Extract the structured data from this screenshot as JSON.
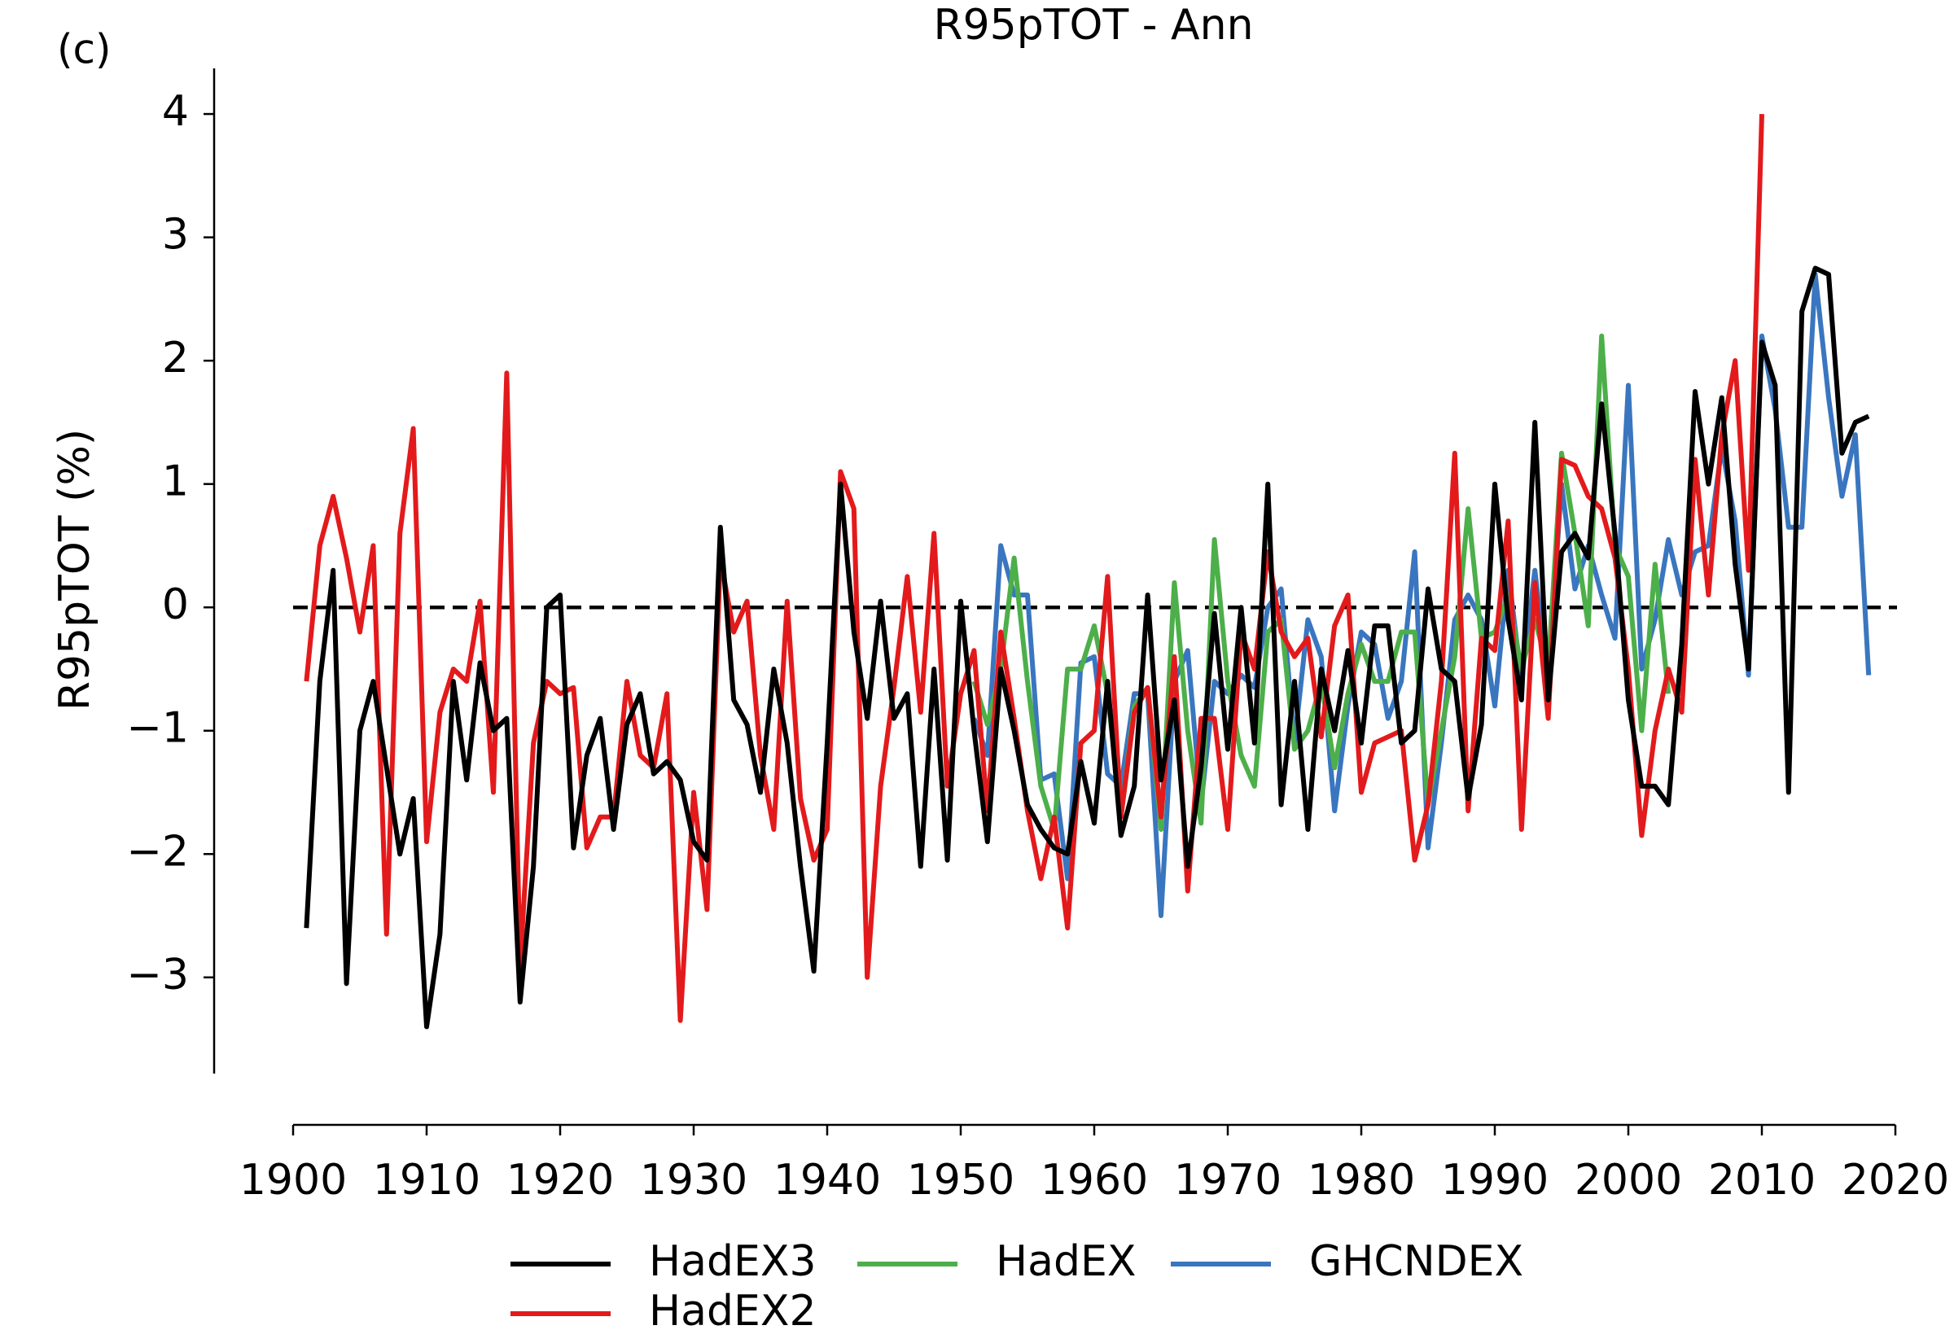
{
  "chart_data": {
    "type": "line",
    "title": "R95pTOT - Ann",
    "ylabel": "R95pTOT (%)",
    "annotation": "(c)",
    "x": [
      1901,
      1902,
      1903,
      1904,
      1905,
      1906,
      1907,
      1908,
      1909,
      1910,
      1911,
      1912,
      1913,
      1914,
      1915,
      1916,
      1917,
      1918,
      1919,
      1920,
      1921,
      1922,
      1923,
      1924,
      1925,
      1926,
      1927,
      1928,
      1929,
      1930,
      1931,
      1932,
      1933,
      1934,
      1935,
      1936,
      1937,
      1938,
      1939,
      1940,
      1941,
      1942,
      1943,
      1944,
      1945,
      1946,
      1947,
      1948,
      1949,
      1950,
      1951,
      1952,
      1953,
      1954,
      1955,
      1956,
      1957,
      1958,
      1959,
      1960,
      1961,
      1962,
      1963,
      1964,
      1965,
      1966,
      1967,
      1968,
      1969,
      1970,
      1971,
      1972,
      1973,
      1974,
      1975,
      1976,
      1977,
      1978,
      1979,
      1980,
      1981,
      1982,
      1983,
      1984,
      1985,
      1986,
      1987,
      1988,
      1989,
      1990,
      1991,
      1992,
      1993,
      1994,
      1995,
      1996,
      1997,
      1998,
      1999,
      2000,
      2001,
      2002,
      2003,
      2004,
      2005,
      2006,
      2007,
      2008,
      2009,
      2010,
      2011,
      2012,
      2013,
      2014,
      2015,
      2016,
      2017,
      2018
    ],
    "series": [
      {
        "name": "HadEX3",
        "color": "#000000",
        "values": [
          -2.6,
          -0.6,
          0.3,
          -3.05,
          -1.0,
          -0.6,
          -1.3,
          -2.0,
          -1.55,
          -3.4,
          -2.65,
          -0.6,
          -1.4,
          -0.45,
          -1.0,
          -0.9,
          -3.2,
          -2.1,
          0.0,
          0.1,
          -1.95,
          -1.2,
          -0.9,
          -1.8,
          -0.95,
          -0.7,
          -1.35,
          -1.25,
          -1.4,
          -1.9,
          -2.05,
          0.65,
          -0.75,
          -0.95,
          -1.5,
          -0.5,
          -1.1,
          -2.1,
          -2.95,
          -1.1,
          1.0,
          -0.2,
          -0.9,
          0.05,
          -0.9,
          -0.7,
          -2.1,
          -0.5,
          -2.05,
          0.05,
          -1.0,
          -1.9,
          -0.5,
          -1.0,
          -1.6,
          -1.8,
          -1.95,
          -2.0,
          -1.25,
          -1.75,
          -0.6,
          -1.85,
          -1.45,
          0.1,
          -1.4,
          -0.75,
          -2.1,
          -1.3,
          -0.05,
          -1.15,
          0.0,
          -1.1,
          1.0,
          -1.6,
          -0.6,
          -1.8,
          -0.5,
          -1.0,
          -0.35,
          -1.1,
          -0.15,
          -0.15,
          -1.1,
          -1.0,
          0.15,
          -0.5,
          -0.6,
          -1.55,
          -0.95,
          1.0,
          -0.1,
          -0.75,
          1.5,
          -0.75,
          0.45,
          0.6,
          0.4,
          1.65,
          0.6,
          -0.75,
          -1.45,
          -1.45,
          -1.6,
          -0.3,
          1.75,
          1.0,
          1.7,
          0.35,
          -0.5,
          2.15,
          1.8,
          -1.5,
          2.4,
          2.75,
          2.7,
          1.25,
          1.5,
          1.55
        ]
      },
      {
        "name": "HadEX2",
        "color": "#e31a1c",
        "values": [
          -0.6,
          0.5,
          0.9,
          0.4,
          -0.2,
          0.5,
          -2.65,
          0.6,
          1.45,
          -1.9,
          -0.85,
          -0.5,
          -0.6,
          0.05,
          -1.5,
          1.9,
          -2.9,
          -1.1,
          -0.6,
          -0.7,
          -0.65,
          -1.95,
          -1.7,
          -1.7,
          -0.6,
          -1.2,
          -1.3,
          -0.7,
          -3.35,
          -1.5,
          -2.45,
          0.4,
          -0.2,
          0.05,
          -1.2,
          -1.8,
          0.05,
          -1.55,
          -2.05,
          -1.8,
          1.1,
          0.8,
          -3.0,
          -1.45,
          -0.65,
          0.25,
          -0.85,
          0.6,
          -1.45,
          -0.7,
          -0.35,
          -1.65,
          -0.2,
          -0.9,
          -1.65,
          -2.2,
          -1.7,
          -2.6,
          -1.1,
          -1.0,
          0.25,
          -1.7,
          -0.85,
          -0.65,
          -1.7,
          -0.4,
          -2.3,
          -0.9,
          -0.9,
          -1.8,
          -0.2,
          -0.5,
          0.45,
          -0.2,
          -0.4,
          -0.25,
          -1.05,
          -0.15,
          0.1,
          -1.5,
          -1.1,
          -1.05,
          -1.0,
          -2.05,
          -1.6,
          -0.6,
          1.25,
          -1.65,
          -0.25,
          -0.35,
          0.7,
          -1.8,
          0.2,
          -0.9,
          1.2,
          1.15,
          0.9,
          0.8,
          0.4,
          -0.5,
          -1.85,
          -1.0,
          -0.5,
          -0.85,
          1.2,
          0.1,
          1.4,
          2.0,
          0.3,
          4.0,
          null,
          null,
          null,
          null,
          null,
          null,
          null,
          null
        ]
      },
      {
        "name": "HadEX",
        "color": "#4daf4a",
        "values": [
          null,
          null,
          null,
          null,
          null,
          null,
          null,
          null,
          null,
          null,
          null,
          null,
          null,
          null,
          null,
          null,
          null,
          null,
          null,
          null,
          null,
          null,
          null,
          null,
          null,
          null,
          null,
          null,
          null,
          null,
          null,
          null,
          null,
          null,
          null,
          null,
          null,
          null,
          null,
          null,
          null,
          null,
          null,
          null,
          null,
          null,
          null,
          null,
          null,
          null,
          -0.6,
          -0.95,
          -0.5,
          0.4,
          -0.6,
          -1.45,
          -1.8,
          -0.5,
          -0.5,
          -0.15,
          -0.7,
          -1.7,
          -0.8,
          -0.65,
          -1.8,
          0.2,
          -1.0,
          -1.75,
          0.55,
          -0.6,
          -1.2,
          -1.45,
          -0.2,
          -0.1,
          -1.15,
          -1.0,
          -0.6,
          -1.3,
          -0.7,
          -0.3,
          -0.6,
          -0.6,
          -0.2,
          -0.2,
          -1.6,
          -1.0,
          -0.4,
          0.8,
          -0.25,
          -0.2,
          0.1,
          -0.5,
          -0.1,
          -0.5,
          1.25,
          0.6,
          -0.15,
          2.2,
          0.5,
          0.25,
          -1.0,
          0.35,
          -0.7,
          null,
          null,
          null,
          null,
          null,
          null,
          null,
          null,
          null,
          null,
          null,
          null,
          null,
          null,
          null
        ]
      },
      {
        "name": "GHCNDEX",
        "color": "#3a76bf",
        "values": [
          null,
          null,
          null,
          null,
          null,
          null,
          null,
          null,
          null,
          null,
          null,
          null,
          null,
          null,
          null,
          null,
          null,
          null,
          null,
          null,
          null,
          null,
          null,
          null,
          null,
          null,
          null,
          null,
          null,
          null,
          null,
          null,
          null,
          null,
          null,
          null,
          null,
          null,
          null,
          null,
          null,
          null,
          null,
          null,
          null,
          null,
          null,
          null,
          null,
          null,
          -0.9,
          -1.2,
          0.5,
          0.1,
          0.1,
          -1.4,
          -1.35,
          -2.2,
          -0.45,
          -0.4,
          -1.35,
          -1.45,
          -0.7,
          -0.7,
          -2.5,
          -0.6,
          -0.35,
          -1.6,
          -0.6,
          -0.7,
          -0.55,
          -0.65,
          0.0,
          0.15,
          -1.1,
          -0.1,
          -0.4,
          -1.65,
          -0.8,
          -0.2,
          -0.3,
          -0.9,
          -0.6,
          0.45,
          -1.95,
          -1.1,
          -0.1,
          0.1,
          -0.1,
          -0.8,
          0.3,
          -0.6,
          0.3,
          -0.6,
          1.0,
          0.15,
          0.5,
          0.1,
          -0.25,
          1.8,
          -0.5,
          -0.1,
          0.55,
          0.1,
          0.45,
          0.5,
          1.3,
          0.7,
          -0.55,
          2.2,
          1.6,
          0.65,
          0.65,
          2.7,
          1.7,
          0.9,
          1.4,
          -0.55
        ]
      }
    ],
    "xlim": [
      1900,
      2020
    ],
    "xticks": [
      1900,
      1910,
      1920,
      1930,
      1940,
      1950,
      1960,
      1970,
      1980,
      1990,
      2000,
      2010,
      2020
    ],
    "ylim": [
      -3.78,
      4.37
    ],
    "yticks": [
      {
        "value": -3,
        "label": "−3"
      },
      {
        "value": -2,
        "label": "−2"
      },
      {
        "value": -1,
        "label": "−1"
      },
      0,
      1,
      2,
      3,
      4
    ],
    "reference_line": 0,
    "grid": false,
    "legend": "lower center"
  }
}
